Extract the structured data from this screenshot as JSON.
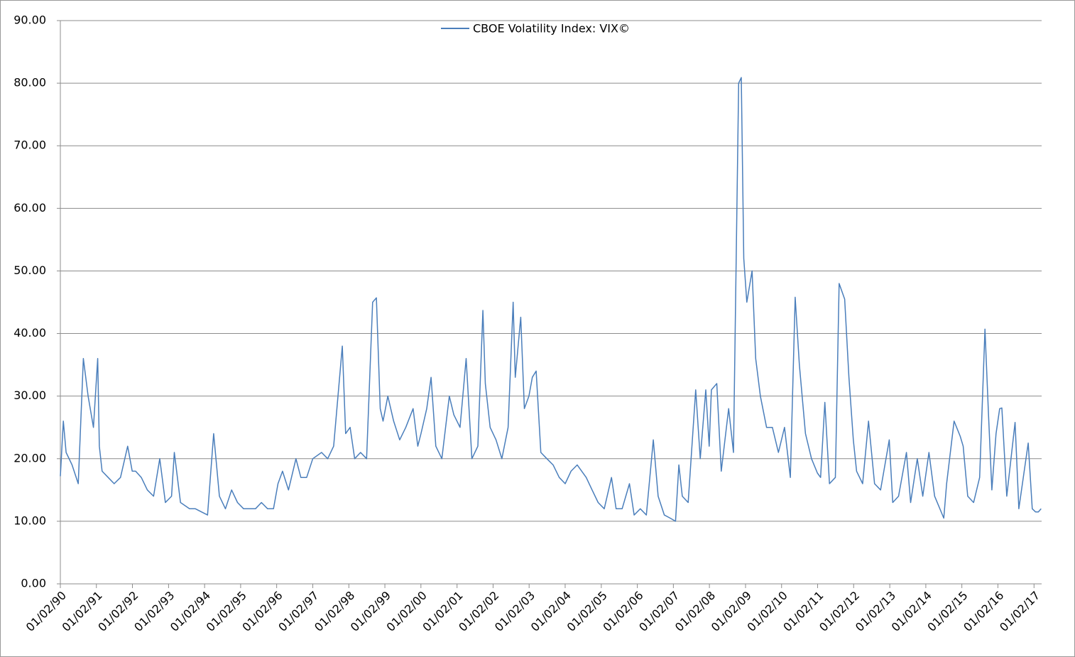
{
  "chart_data": {
    "type": "line",
    "x": [
      "01/02/90",
      "02/01/90",
      "03/01/90",
      "05/01/90",
      "07/02/90",
      "08/23/90",
      "10/10/90",
      "12/03/90",
      "01/15/91",
      "02/01/91",
      "03/01/91",
      "05/01/91",
      "07/01/91",
      "09/03/91",
      "11/15/91",
      "12/31/91",
      "02/03/92",
      "04/01/92",
      "06/01/92",
      "08/03/92",
      "10/05/92",
      "12/01/92",
      "02/01/93",
      "03/01/93",
      "05/03/93",
      "08/02/93",
      "10/01/93",
      "12/01/93",
      "02/01/94",
      "04/04/94",
      "06/01/94",
      "08/01/94",
      "10/03/94",
      "12/01/94",
      "02/01/95",
      "04/03/95",
      "06/01/95",
      "08/01/95",
      "10/02/95",
      "12/01/95",
      "01/15/96",
      "03/01/96",
      "05/01/96",
      "07/15/96",
      "09/03/96",
      "11/01/96",
      "01/02/97",
      "04/01/97",
      "06/02/97",
      "08/01/97",
      "10/28/97",
      "12/01/97",
      "01/15/98",
      "03/02/98",
      "05/01/98",
      "07/01/98",
      "08/31/98",
      "10/08/98",
      "11/16/98",
      "12/15/98",
      "02/01/99",
      "04/01/99",
      "06/01/99",
      "08/02/99",
      "10/15/99",
      "12/01/99",
      "01/03/00",
      "03/01/00",
      "04/14/00",
      "06/01/00",
      "08/01/00",
      "10/16/00",
      "12/01/00",
      "02/01/01",
      "04/04/01",
      "06/01/01",
      "08/01/01",
      "09/21/01",
      "10/15/01",
      "12/03/01",
      "02/01/02",
      "04/01/02",
      "06/03/02",
      "07/24/02",
      "08/15/02",
      "10/09/02",
      "11/15/02",
      "12/31/02",
      "02/03/03",
      "03/14/03",
      "05/01/03",
      "07/01/03",
      "09/02/03",
      "11/03/03",
      "01/02/04",
      "03/01/04",
      "05/03/04",
      "08/02/04",
      "10/01/04",
      "12/01/04",
      "02/01/05",
      "04/15/05",
      "06/01/05",
      "08/01/05",
      "10/14/05",
      "12/01/05",
      "02/01/06",
      "04/03/06",
      "06/13/06",
      "08/01/06",
      "10/02/06",
      "12/01/06",
      "01/24/07",
      "02/27/07",
      "04/02/07",
      "06/01/07",
      "08/16/07",
      "10/01/07",
      "11/26/07",
      "12/31/07",
      "01/22/08",
      "03/17/08",
      "05/01/08",
      "07/15/08",
      "09/02/08",
      "10/24/08",
      "11/20/08",
      "12/15/08",
      "01/15/09",
      "03/09/09",
      "04/15/09",
      "06/01/09",
      "08/03/09",
      "10/01/09",
      "12/01/09",
      "02/01/10",
      "04/01/10",
      "05/20/10",
      "07/01/10",
      "09/01/10",
      "11/01/10",
      "12/31/10",
      "02/01/11",
      "03/16/11",
      "05/02/11",
      "07/01/11",
      "08/08/11",
      "10/03/11",
      "11/15/11",
      "12/30/11",
      "02/01/12",
      "04/02/12",
      "06/01/12",
      "08/01/12",
      "10/01/12",
      "12/28/12",
      "02/01/13",
      "04/01/13",
      "06/20/13",
      "08/01/13",
      "10/08/13",
      "12/02/13",
      "02/03/14",
      "04/01/14",
      "07/03/14",
      "08/01/14",
      "10/15/14",
      "12/16/14",
      "01/15/15",
      "03/02/15",
      "05/01/15",
      "07/01/15",
      "08/24/15",
      "09/29/15",
      "11/02/15",
      "12/14/15",
      "01/20/16",
      "02/11/16",
      "04/01/16",
      "06/24/16",
      "08/01/16",
      "11/04/16",
      "12/15/16",
      "01/17/17",
      "02/15/17",
      "03/15/17"
    ],
    "series": [
      {
        "name": "CBOE Volatility Index: VIX©",
        "color": "#4a7ebb",
        "values": [
          17.2,
          26,
          21,
          19,
          16,
          36,
          30,
          25,
          36,
          22,
          18,
          17,
          16,
          17,
          22,
          18,
          18,
          17,
          15,
          14,
          20,
          13,
          14,
          21,
          13,
          12,
          12,
          11.5,
          11,
          24,
          14,
          12,
          15,
          13,
          12,
          12,
          12,
          13,
          12,
          12,
          16,
          18,
          15,
          20,
          17,
          17,
          20,
          21,
          20,
          22,
          38,
          24,
          25,
          20,
          21,
          20,
          45,
          45.7,
          28,
          26,
          30,
          26,
          23,
          25,
          28,
          22,
          24,
          28,
          33,
          22,
          20,
          30,
          27,
          25,
          36,
          20,
          22,
          43.7,
          32,
          25,
          23,
          20,
          25,
          45,
          33,
          42.6,
          28,
          30,
          33,
          34,
          21,
          20,
          19,
          17,
          16,
          18,
          19,
          17,
          15,
          13,
          12,
          17,
          12,
          12,
          16,
          11,
          12,
          11,
          23,
          14,
          11,
          10.5,
          10,
          19,
          14,
          13,
          31,
          20,
          31,
          22,
          31,
          32,
          18,
          28,
          21,
          80,
          80.9,
          52,
          45,
          50,
          36,
          30,
          25,
          25,
          21,
          25,
          17,
          45.8,
          35,
          24,
          20,
          17.7,
          17,
          29,
          16,
          17,
          48,
          45.5,
          33,
          23,
          18,
          16,
          26,
          16,
          15,
          23,
          13,
          14,
          21,
          13,
          20,
          14,
          21,
          14,
          10.5,
          16,
          26,
          23.6,
          22,
          14,
          13,
          17,
          40.7,
          27,
          15,
          24,
          28,
          28.1,
          14,
          25.8,
          12,
          22.5,
          12,
          11.5,
          11.5,
          12
        ]
      }
    ],
    "xlim": [
      "01/02/90",
      "03/20/17"
    ],
    "xticks": [
      "01/02/90",
      "01/02/91",
      "01/02/92",
      "01/02/93",
      "01/02/94",
      "01/02/95",
      "01/02/96",
      "01/02/97",
      "01/02/98",
      "01/02/99",
      "01/02/00",
      "01/02/01",
      "01/02/02",
      "01/02/03",
      "01/02/04",
      "01/02/05",
      "01/02/06",
      "01/02/07",
      "01/02/08",
      "01/02/09",
      "01/02/10",
      "01/02/11",
      "01/02/12",
      "01/02/13",
      "01/02/14",
      "01/02/15",
      "01/02/16",
      "01/02/17"
    ],
    "ylim": [
      0,
      90
    ],
    "yticks": [
      {
        "value": 0,
        "label": "0.00"
      },
      {
        "value": 10,
        "label": "10.00"
      },
      {
        "value": 20,
        "label": "20.00"
      },
      {
        "value": 30,
        "label": "30.00"
      },
      {
        "value": 40,
        "label": "40.00"
      },
      {
        "value": 50,
        "label": "50.00"
      },
      {
        "value": 60,
        "label": "60.00"
      },
      {
        "value": 70,
        "label": "70.00"
      },
      {
        "value": 80,
        "label": "80.00"
      },
      {
        "value": 90,
        "label": "90.00"
      }
    ],
    "grid": true
  }
}
